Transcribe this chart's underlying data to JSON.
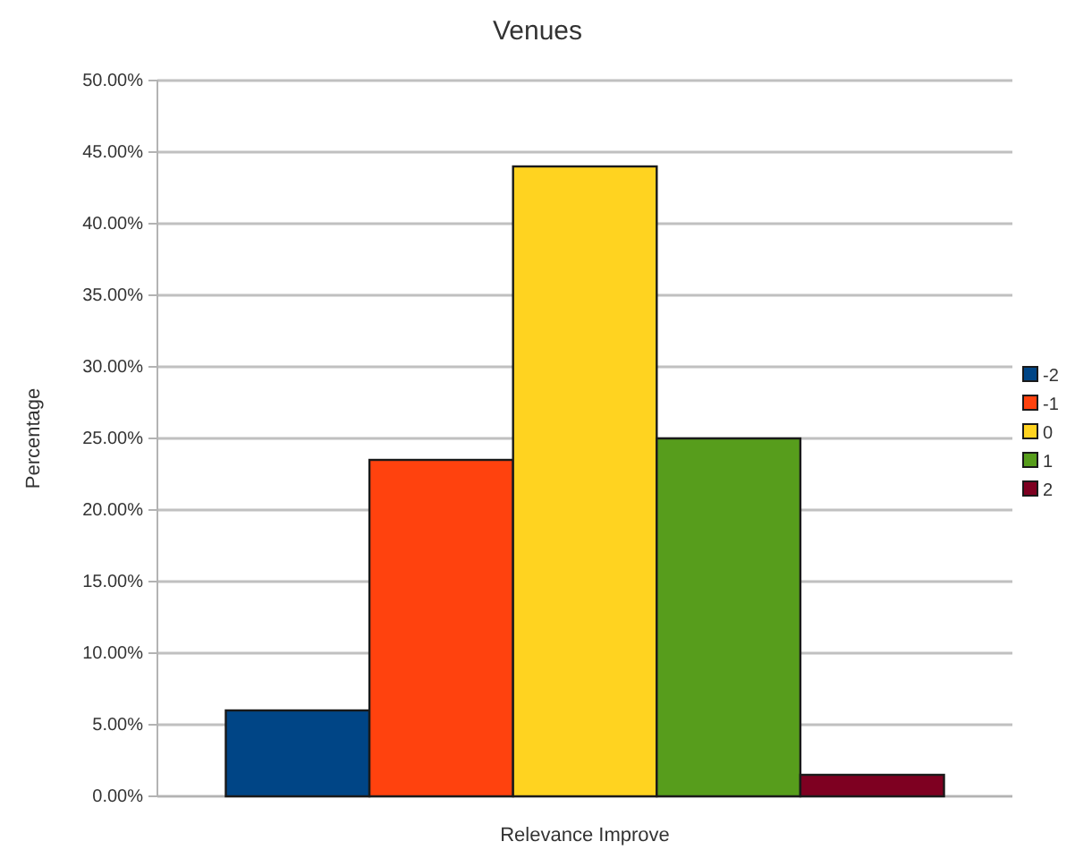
{
  "chart_data": {
    "type": "bar",
    "title": "Venues",
    "xlabel": "Relevance Improve",
    "ylabel": "Percentage",
    "categories": [
      null
    ],
    "series": [
      {
        "name": "-2",
        "color": "#004586",
        "values": [
          6.0
        ]
      },
      {
        "name": "-1",
        "color": "#ff420e",
        "values": [
          23.5
        ]
      },
      {
        "name": "0",
        "color": "#ffd320",
        "values": [
          44.0
        ]
      },
      {
        "name": "1",
        "color": "#579d1c",
        "values": [
          25.0
        ]
      },
      {
        "name": "2",
        "color": "#7e0021",
        "values": [
          1.5
        ]
      }
    ],
    "ylim": [
      0,
      50
    ],
    "yticks": [
      {
        "value": 0,
        "label": "0.00%"
      },
      {
        "value": 5,
        "label": "5.00%"
      },
      {
        "value": 10,
        "label": "10.00%"
      },
      {
        "value": 15,
        "label": "15.00%"
      },
      {
        "value": 20,
        "label": "20.00%"
      },
      {
        "value": 25,
        "label": "25.00%"
      },
      {
        "value": 30,
        "label": "30.00%"
      },
      {
        "value": 35,
        "label": "35.00%"
      },
      {
        "value": 40,
        "label": "40.00%"
      },
      {
        "value": 45,
        "label": "45.00%"
      },
      {
        "value": 50,
        "label": "50.00%"
      }
    ],
    "grid": "y",
    "legend": "right"
  }
}
